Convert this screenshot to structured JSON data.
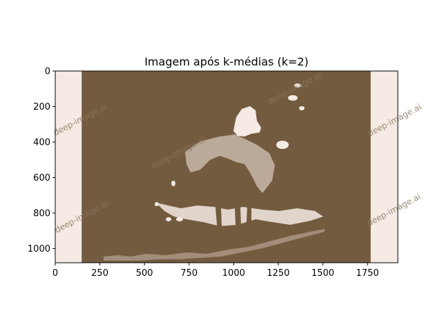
{
  "chart_data": {
    "type": "image",
    "title": "Imagem após k-médias (k=2)",
    "xlim": [
      0,
      1920
    ],
    "ylim": [
      1080,
      0
    ],
    "x_ticks": [
      0,
      250,
      500,
      750,
      1000,
      1250,
      1500,
      1750
    ],
    "y_ticks": [
      0,
      200,
      400,
      600,
      800,
      1000
    ],
    "cluster_colors": [
      "#735b3f",
      "#f5ebe4"
    ],
    "dark_region_x": [
      148,
      1768
    ],
    "watermark_text": "deep-image.ai",
    "grid": false
  }
}
